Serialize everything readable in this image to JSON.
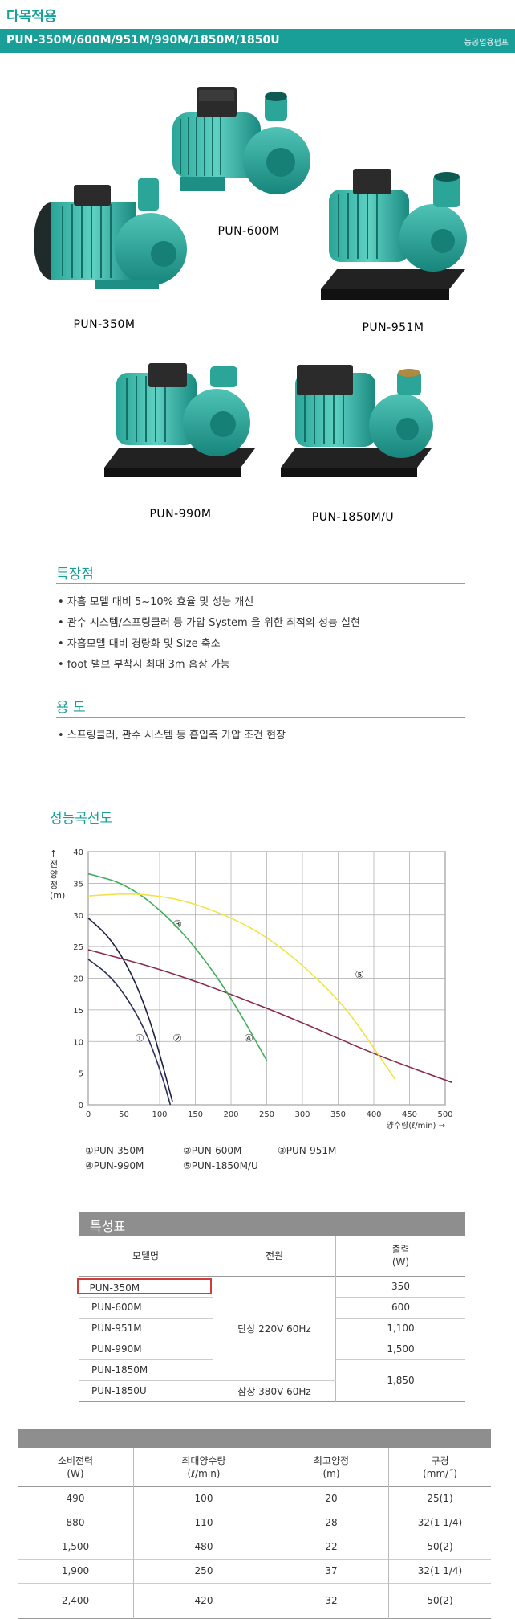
{
  "header": {
    "title": "다목적용",
    "models": "PUN-350M/600M/951M/990M/1850M/1850U",
    "category": "농공업용펌프"
  },
  "pumps": [
    {
      "label": "PUN-600M"
    },
    {
      "label": "PUN-350M"
    },
    {
      "label": "PUN-951M"
    },
    {
      "label": "PUN-990M"
    },
    {
      "label": "PUN-1850M/U"
    }
  ],
  "features": {
    "title": "특장점",
    "items": [
      "• 자흡 모델 대비 5~10% 효율 및 성능 개선",
      "• 관수 시스템/스프링클러 등 가압 System 을 위한 최적의 성능 실현",
      "• 자흡모델 대비 경량화 및 Size 축소",
      "• foot 밸브 부착시 최대 3m 흡상 가능"
    ]
  },
  "usage": {
    "title": "용 도",
    "items": [
      "• 스프링클러, 관수 시스템 등 흡입측 가압 조건 현장"
    ]
  },
  "curve": {
    "title": "성능곡선도",
    "ylabel": "↑ 전양정 (m)",
    "xlabel": "양수량(ℓ/min) →",
    "legend": [
      "①PUN-350M",
      "②PUN-600M",
      "③PUN-951M",
      "④PUN-990M",
      "⑤PUN-1850M/U"
    ]
  },
  "chart_data": {
    "type": "line",
    "xlabel": "양수량(ℓ/min) →",
    "ylabel": "↑ 전양정 (m)",
    "xlim": [
      0,
      500
    ],
    "ylim": [
      0,
      40
    ],
    "xticks": [
      0,
      50,
      100,
      150,
      200,
      250,
      300,
      350,
      400,
      450,
      500
    ],
    "yticks": [
      0,
      5,
      10,
      15,
      20,
      25,
      30,
      35,
      40
    ],
    "grid": true,
    "series": [
      {
        "marker": "①",
        "color": "#2a2f5e",
        "points": [
          [
            0,
            23
          ],
          [
            30,
            20.5
          ],
          [
            60,
            16
          ],
          [
            85,
            10.5
          ],
          [
            105,
            4
          ],
          [
            115,
            0
          ]
        ],
        "mark_at": [
          72,
          10
        ]
      },
      {
        "marker": "②",
        "color": "#1e2040",
        "points": [
          [
            0,
            29.5
          ],
          [
            30,
            26.5
          ],
          [
            60,
            21
          ],
          [
            85,
            14
          ],
          [
            105,
            6
          ],
          [
            118,
            0.5
          ]
        ],
        "mark_at": [
          125,
          10
        ]
      },
      {
        "marker": "③",
        "color": "#8a2a4a",
        "points": [
          [
            0,
            24.5
          ],
          [
            100,
            21.5
          ],
          [
            200,
            17.5
          ],
          [
            300,
            13
          ],
          [
            400,
            8
          ],
          [
            510,
            3.5
          ]
        ],
        "mark_at": [
          125,
          28
        ]
      },
      {
        "marker": "④",
        "color": "#3fae5a",
        "points": [
          [
            0,
            36.5
          ],
          [
            50,
            35
          ],
          [
            100,
            31
          ],
          [
            150,
            25
          ],
          [
            200,
            17
          ],
          [
            250,
            7
          ]
        ],
        "mark_at": [
          225,
          10
        ]
      },
      {
        "marker": "⑤",
        "color": "#f2e24a",
        "points": [
          [
            0,
            33
          ],
          [
            70,
            33.5
          ],
          [
            150,
            32
          ],
          [
            250,
            27
          ],
          [
            350,
            17
          ],
          [
            400,
            9
          ],
          [
            430,
            4
          ]
        ],
        "mark_at": [
          380,
          20
        ]
      }
    ]
  },
  "spec_table": {
    "title": "특성표",
    "headers": [
      "모델명",
      "전원",
      "출력\n(W)"
    ],
    "models": [
      "PUN-350M",
      "PUN-600M",
      "PUN-951M",
      "PUN-990M",
      "PUN-1850M",
      "PUN-1850U"
    ],
    "power_single": "단상 220V 60Hz",
    "power_three": "삼상 380V 60Hz",
    "outputs": [
      "350",
      "600",
      "1,100",
      "1,500",
      "1,850"
    ]
  },
  "spec_table2": {
    "headers": [
      {
        "line1": "소비전력",
        "line2": "(W)"
      },
      {
        "line1": "최대양수량",
        "line2": "(ℓ/min)"
      },
      {
        "line1": "최고양정",
        "line2": "(m)"
      },
      {
        "line1": "구경",
        "line2": "(mm/˝)"
      }
    ],
    "rows": [
      [
        "490",
        "100",
        "20",
        "25(1)"
      ],
      [
        "880",
        "110",
        "28",
        "32(1 1/4)"
      ],
      [
        "1,500",
        "480",
        "22",
        "50(2)"
      ],
      [
        "1,900",
        "250",
        "37",
        "32(1 1/4)"
      ],
      [
        "2,400",
        "420",
        "32",
        "50(2)"
      ]
    ]
  }
}
